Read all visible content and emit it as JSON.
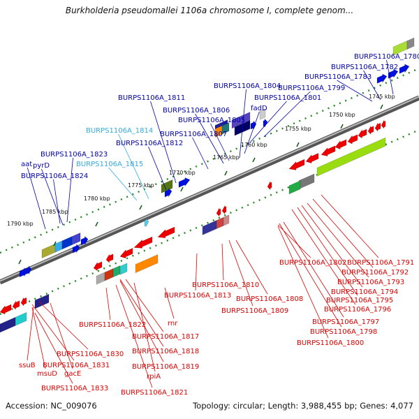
{
  "title": "Burkholderia pseudomallei 1106a chromosome I, complete genom...",
  "footer": {
    "accession": "Accession: NC_009076",
    "summary": "Topology: circular; Length: 3,988,455 bp; Genes: 4,077"
  },
  "colors": {
    "forward_label": "#0000aa",
    "forward_label_light": "#33aadd",
    "reverse_label": "#dd0000",
    "backbone": "#777777",
    "tick": "#228822"
  },
  "ticks": [
    "1745 kbp",
    "1750 kbp",
    "1755 kbp",
    "1760 kbp",
    "1765 kbp",
    "1770 kbp",
    "1775 kbp",
    "1780 kbp",
    "1785 kbp",
    "1790 kbp"
  ],
  "forward_labels": [
    "BURPS1106A_1780",
    "BURPS1106A_1782",
    "BURPS1106A_1783",
    "BURPS1106A_1804",
    "BURPS1106A_1799",
    "BURPS1106A_1811",
    "BURPS1106A_1801",
    "fadD",
    "BURPS1106A_1806",
    "BURPS1106A_1805",
    "BURPS1106A_1814",
    "BURPS1106A_1807",
    "BURPS1106A_1812",
    "BURPS1106A_1823",
    "aat",
    "pyrD",
    "BURPS1106A_1815",
    "BURPS1106A_1824"
  ],
  "reverse_labels": [
    "BURPS1106A_1802",
    "BURPS1106A_1791",
    "BURPS1106A_1792",
    "BURPS1106A_1793",
    "BURPS1106A_1810",
    "BURPS1106A_1794",
    "BURPS1106A_1813",
    "BURPS1106A_1808",
    "BURPS1106A_1795",
    "BURPS1106A_1809",
    "BURPS1106A_1796",
    "BURPS1106A_1797",
    "rnr",
    "BURPS1106A_1822",
    "BURPS1106A_1798",
    "BURPS1106A_1817",
    "BURPS1106A_1800",
    "BURPS1106A_1818",
    "BURPS1106A_1830",
    "BURPS1106A_1819",
    "ssuB",
    "BURPS1106A_1831",
    "msuD",
    "gacE",
    "rpiA",
    "BURPS1106A_1833",
    "BURPS1106A_1821"
  ]
}
